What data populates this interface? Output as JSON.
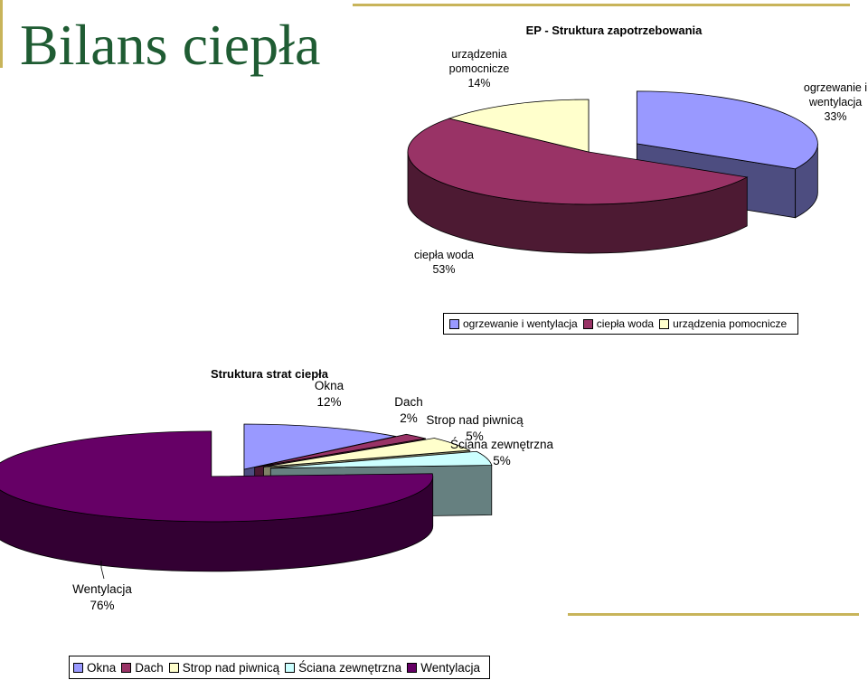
{
  "slide": {
    "title": "Bilans ciepła"
  },
  "chart_data": [
    {
      "type": "pie",
      "title": "EP - Struktura zapotrzebowania",
      "slices": [
        {
          "label": "ogrzewanie i wentylacja",
          "label_lines": [
            "ogrzewanie i",
            "wentylacja"
          ],
          "value": 33,
          "display": "33%",
          "color": "#9999ff",
          "side": "#4d4d80"
        },
        {
          "label": "ciepła woda",
          "label_lines": [
            "ciepła woda"
          ],
          "value": 53,
          "display": "53%",
          "color": "#993366",
          "side": "#4d1a33"
        },
        {
          "label": "urządzenia pomocnicze",
          "label_lines": [
            "urządzenia",
            "pomocnicze"
          ],
          "value": 14,
          "display": "14%",
          "color": "#ffffcc",
          "side": "#808066"
        }
      ],
      "legend": [
        "ogrzewanie i wentylacja",
        "ciepła woda",
        "urządzenia pomocnicze"
      ]
    },
    {
      "type": "pie",
      "title": "Struktura strat ciepła",
      "slices": [
        {
          "label": "Okna",
          "label_lines": [
            "Okna"
          ],
          "value": 12,
          "display": "12%",
          "color": "#9999ff",
          "side": "#4d4d80"
        },
        {
          "label": "Dach",
          "label_lines": [
            "Dach"
          ],
          "value": 2,
          "display": "2%",
          "color": "#993366",
          "side": "#4d1a33"
        },
        {
          "label": "Strop nad piwnicą",
          "label_lines": [
            "Strop nad piwnicą"
          ],
          "value": 5,
          "display": "5%",
          "color": "#ffffcc",
          "side": "#808066"
        },
        {
          "label": "Ściana zewnętrzna",
          "label_lines": [
            "Ściana zewnętrzna"
          ],
          "value": 5,
          "display": "5%",
          "color": "#ccffff",
          "side": "#668080"
        },
        {
          "label": "Wentylacja",
          "label_lines": [
            "Wentylacja"
          ],
          "value": 76,
          "display": "76%",
          "color": "#660066",
          "side": "#330033"
        }
      ],
      "legend": [
        "Okna",
        "Dach",
        "Strop nad piwnicą",
        "Ściana zewnętrzna",
        "Wentylacja"
      ]
    }
  ]
}
